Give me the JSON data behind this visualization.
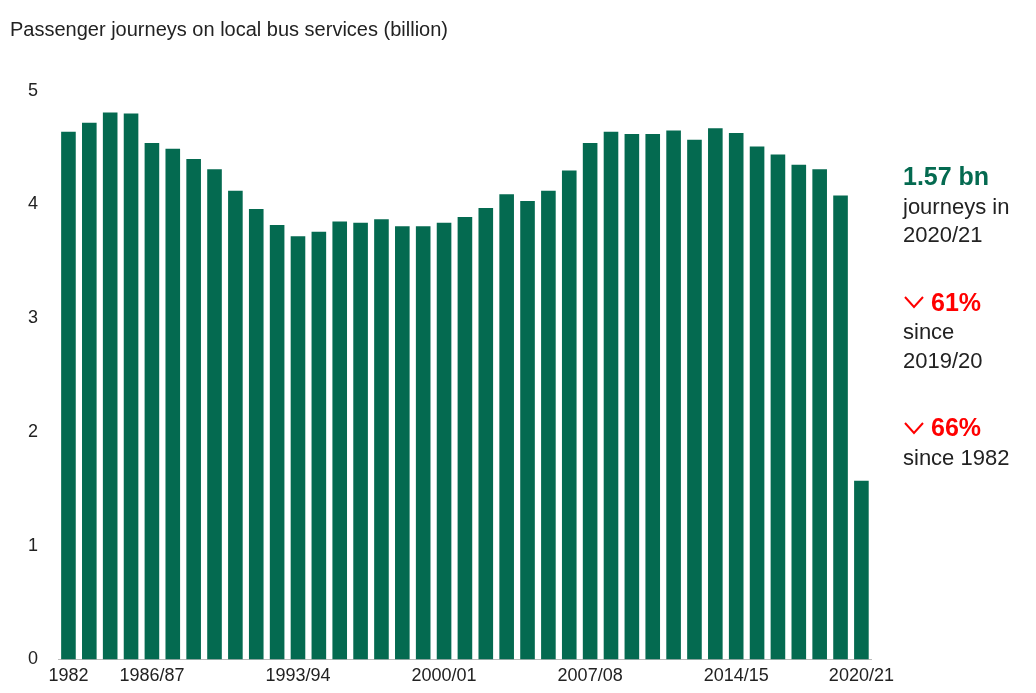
{
  "chart_data": {
    "type": "bar",
    "title": "Passenger journeys on local bus services (billion)",
    "categories": [
      "1982",
      null,
      null,
      null,
      "1986/87",
      null,
      null,
      null,
      null,
      null,
      null,
      "1993/94",
      null,
      null,
      null,
      null,
      null,
      null,
      "2000/01",
      null,
      null,
      null,
      null,
      null,
      null,
      "2007/08",
      null,
      null,
      null,
      null,
      null,
      null,
      "2014/15",
      null,
      null,
      null,
      null,
      null,
      "2020/21"
    ],
    "values": [
      4.64,
      4.72,
      4.81,
      4.8,
      4.54,
      4.49,
      4.4,
      4.31,
      4.12,
      3.96,
      3.82,
      3.72,
      3.76,
      3.85,
      3.84,
      3.87,
      3.81,
      3.81,
      3.84,
      3.89,
      3.97,
      4.09,
      4.03,
      4.12,
      4.3,
      4.54,
      4.64,
      4.62,
      4.62,
      4.65,
      4.57,
      4.67,
      4.63,
      4.51,
      4.44,
      4.35,
      4.31,
      4.08,
      1.57
    ],
    "color": "#046a50",
    "ylim": [
      0,
      5
    ],
    "yticks": [
      0,
      1,
      2,
      3,
      4,
      5
    ],
    "grid": false,
    "legend": false,
    "annotations": [
      "1.57 bn",
      "journeys in 2020/21",
      "61%",
      "since 2019/20",
      "66%",
      "since 1982"
    ]
  }
}
